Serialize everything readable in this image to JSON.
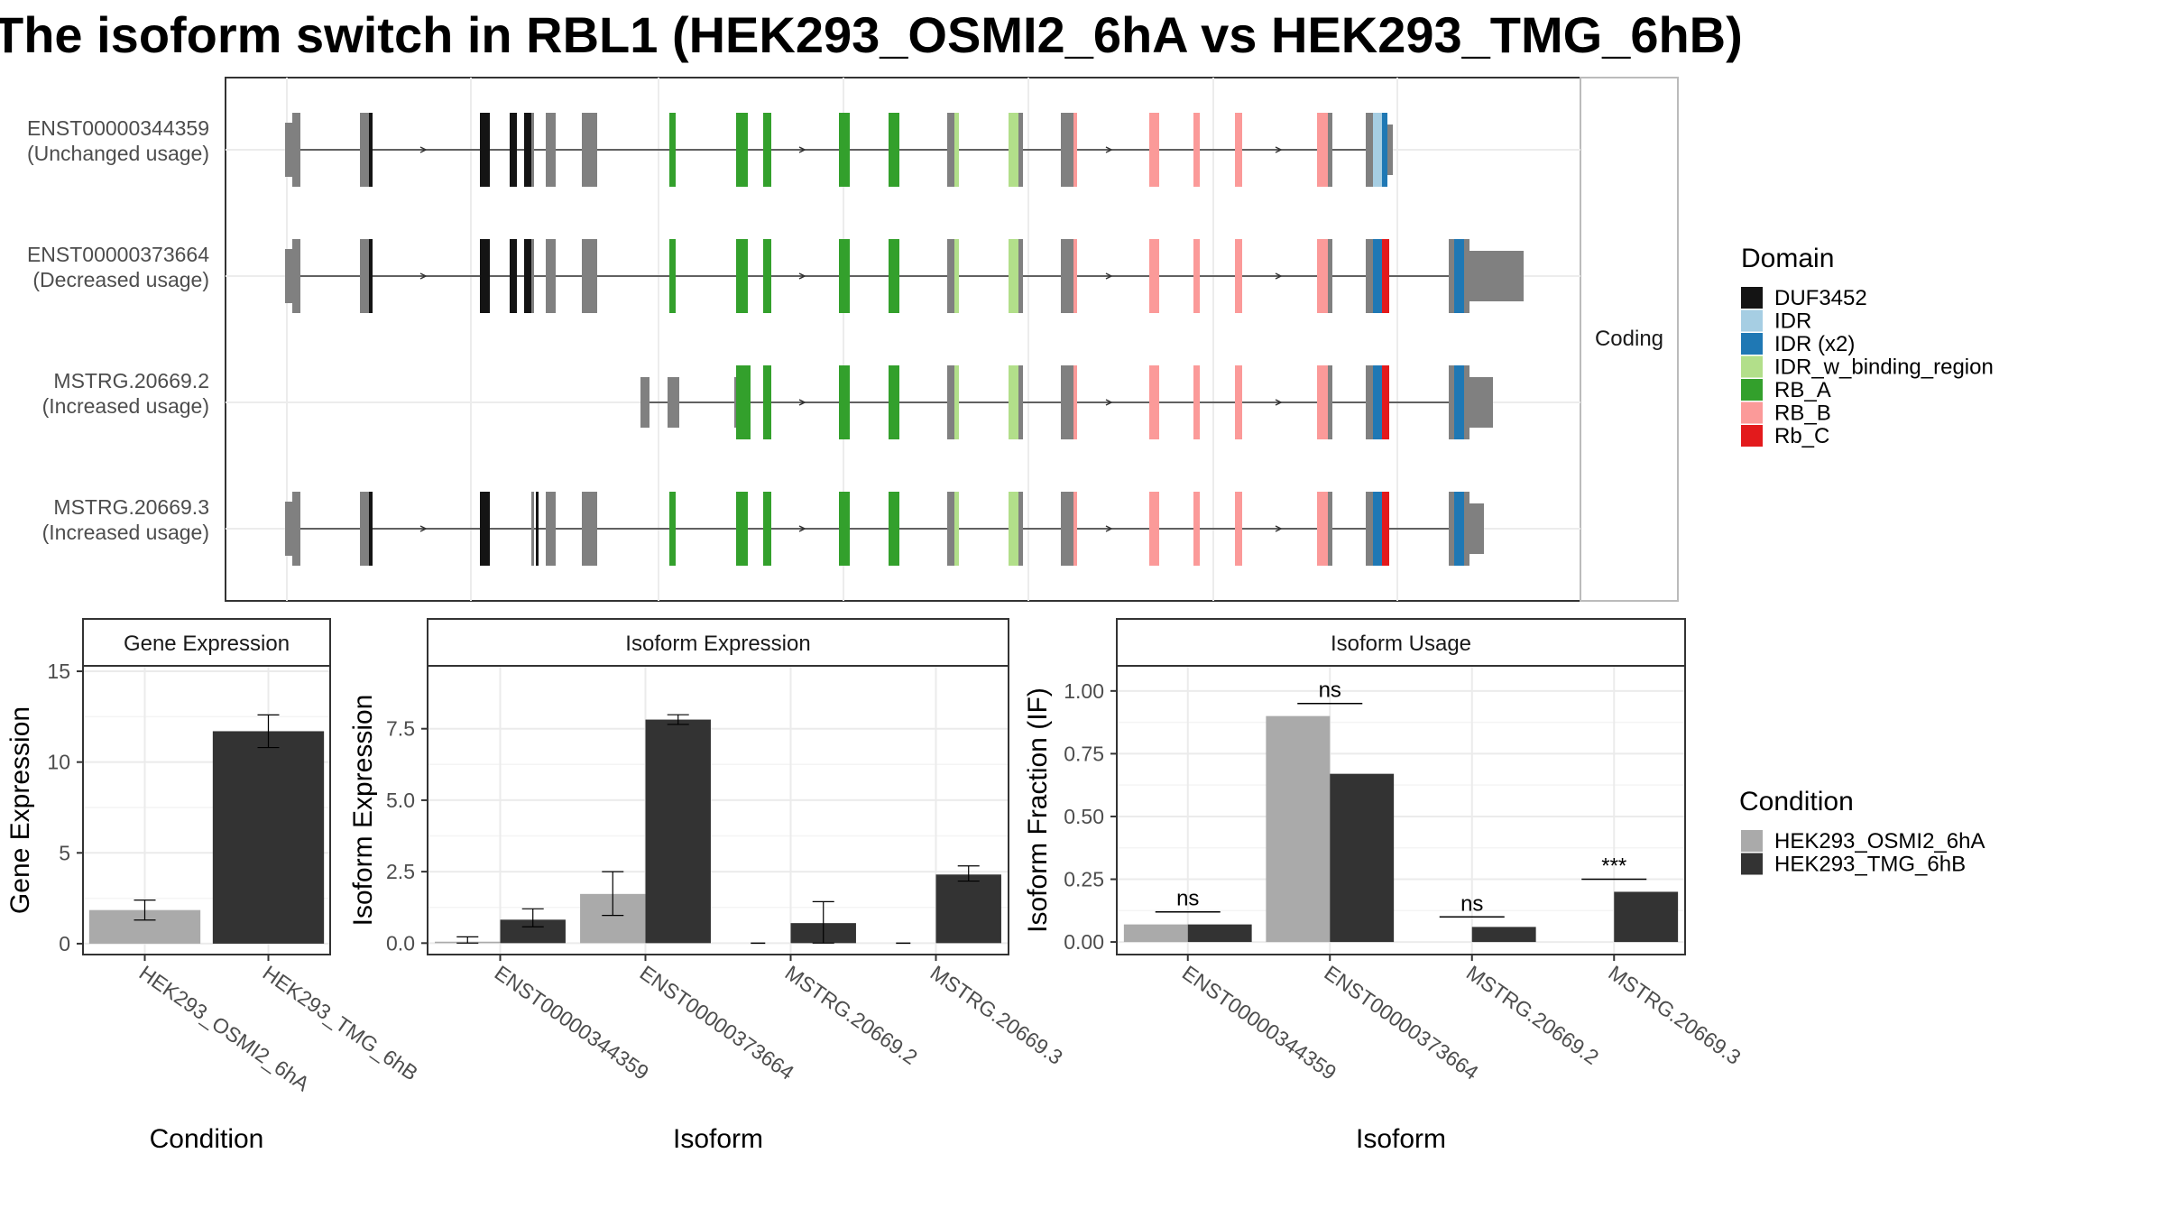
{
  "title": "The isoform switch in RBL1 (HEK293_OSMI2_6hA vs HEK293_TMG_6hB)",
  "colors": {
    "DUF3452": "#141414",
    "IDR": "#a6cee3",
    "IDR (x2)": "#1f78b4",
    "IDR_w_binding_region": "#b2df8a",
    "RB_A": "#33a02c",
    "RB_B": "#fb9a99",
    "Rb_C": "#e31a1c",
    "no_domain": "#808080",
    "HEK293_OSMI2_6hA": "#aaaaaa",
    "HEK293_TMG_6hB": "#333333"
  },
  "structure": {
    "facet_label": "Coding",
    "transcripts": [
      {
        "id": "ENST00000344359",
        "usage": "(Unchanged usage)"
      },
      {
        "id": "ENST00000373664",
        "usage": "(Decreased usage)"
      },
      {
        "id": "MSTRG.20669.2",
        "usage": "(Increased usage)"
      },
      {
        "id": "MSTRG.20669.3",
        "usage": "(Increased usage)"
      }
    ],
    "domain_legend": {
      "title": "Domain",
      "items": [
        "DUF3452",
        "IDR",
        "IDR (x2)",
        "IDR_w_binding_region",
        "RB_A",
        "RB_B",
        "Rb_C"
      ]
    }
  },
  "condition_legend": {
    "title": "Condition",
    "items": [
      "HEK293_OSMI2_6hA",
      "HEK293_TMG_6hB"
    ]
  },
  "chart_data": [
    {
      "type": "bar",
      "title": "Gene Expression",
      "xlabel": "Condition",
      "ylabel": "Gene Expression",
      "categories": [
        "HEK293_OSMI2_6hA",
        "HEK293_TMG_6hB"
      ],
      "values": [
        1.85,
        11.7
      ],
      "errors": [
        [
          1.3,
          2.4
        ],
        [
          10.8,
          12.6
        ]
      ],
      "ylim": [
        -0.6,
        15.3
      ],
      "yticks": [
        0,
        5,
        10,
        15
      ],
      "ytick_labels": [
        "0",
        "5",
        "10",
        "15"
      ]
    },
    {
      "type": "bar",
      "title": "Isoform Expression",
      "xlabel": "Isoform",
      "ylabel": "Isoform Expression",
      "categories": [
        "ENST00000344359",
        "ENST00000373664",
        "MSTRG.20669.2",
        "MSTRG.20669.3"
      ],
      "series": [
        {
          "name": "HEK293_OSMI2_6hA",
          "values": [
            0.05,
            1.72,
            0.0,
            0.0
          ],
          "errors": [
            [
              0.0,
              0.22
            ],
            [
              0.97,
              2.5
            ],
            [
              0.0,
              0.0
            ],
            [
              0.0,
              0.0
            ]
          ]
        },
        {
          "name": "HEK293_TMG_6hB",
          "values": [
            0.82,
            7.82,
            0.7,
            2.4
          ],
          "errors": [
            [
              0.57,
              1.2
            ],
            [
              7.65,
              7.99
            ],
            [
              0.0,
              1.45
            ],
            [
              2.17,
              2.7
            ]
          ]
        }
      ],
      "ylim": [
        -0.4,
        9.7
      ],
      "yticks": [
        0,
        2.5,
        5.0,
        7.5
      ],
      "ytick_labels": [
        "0.0",
        "2.5",
        "5.0",
        "7.5"
      ]
    },
    {
      "type": "bar",
      "title": "Isoform Usage",
      "xlabel": "Isoform",
      "ylabel": "Isoform Fraction (IF)",
      "categories": [
        "ENST00000344359",
        "ENST00000373664",
        "MSTRG.20669.2",
        "MSTRG.20669.3"
      ],
      "series": [
        {
          "name": "HEK293_OSMI2_6hA",
          "values": [
            0.07,
            0.9,
            0.0,
            0.0
          ]
        },
        {
          "name": "HEK293_TMG_6hB",
          "values": [
            0.07,
            0.67,
            0.06,
            0.2
          ]
        }
      ],
      "significance": [
        "ns",
        "ns",
        "ns",
        "***"
      ],
      "significance_y": [
        0.12,
        0.95,
        0.1,
        0.25
      ],
      "ylim": [
        -0.05,
        1.1
      ],
      "yticks": [
        0,
        0.25,
        0.5,
        0.75,
        1.0
      ],
      "ytick_labels": [
        "0.00",
        "0.25",
        "0.50",
        "0.75",
        "1.00"
      ]
    }
  ]
}
